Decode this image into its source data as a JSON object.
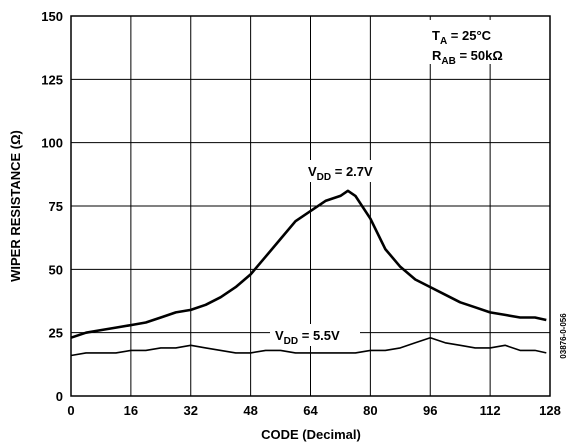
{
  "chart_data": {
    "type": "line",
    "xlabel": "CODE (Decimal)",
    "ylabel": "WIPER RESISTANCE (Ω)",
    "xlim": [
      0,
      128
    ],
    "ylim": [
      0,
      150
    ],
    "x_ticks": [
      "0",
      "16",
      "32",
      "48",
      "64",
      "80",
      "96",
      "112",
      "128"
    ],
    "y_ticks": [
      "0",
      "25",
      "50",
      "75",
      "100",
      "125",
      "150"
    ],
    "grid": true,
    "conditions": {
      "ta_main": "T",
      "ta_sub": "A",
      "ta_value": " = 25°C",
      "rab_main": "R",
      "rab_sub": "AB",
      "rab_value": " = 50kΩ"
    },
    "series": [
      {
        "label_main": "V",
        "label_sub": "DD",
        "label_value": " = 2.7V",
        "x": [
          0,
          4,
          8,
          12,
          16,
          20,
          24,
          28,
          32,
          36,
          40,
          44,
          48,
          52,
          56,
          60,
          64,
          68,
          72,
          74,
          76,
          80,
          84,
          88,
          92,
          96,
          100,
          104,
          108,
          112,
          116,
          120,
          124,
          127
        ],
        "values": [
          23,
          25,
          26,
          27,
          28,
          29,
          31,
          33,
          34,
          36,
          39,
          43,
          48,
          55,
          62,
          69,
          73,
          77,
          79,
          81,
          79,
          70,
          58,
          51,
          46,
          43,
          40,
          37,
          35,
          33,
          32,
          31,
          31,
          30
        ]
      },
      {
        "label_main": "V",
        "label_sub": "DD",
        "label_value": " = 5.5V",
        "x": [
          0,
          4,
          8,
          12,
          16,
          20,
          24,
          28,
          32,
          36,
          40,
          44,
          48,
          52,
          56,
          60,
          64,
          68,
          72,
          76,
          80,
          84,
          88,
          92,
          96,
          100,
          104,
          108,
          112,
          116,
          120,
          124,
          127
        ],
        "values": [
          16,
          17,
          17,
          17,
          18,
          18,
          19,
          19,
          20,
          19,
          18,
          17,
          17,
          18,
          18,
          17,
          17,
          17,
          17,
          17,
          18,
          18,
          19,
          21,
          23,
          21,
          20,
          19,
          19,
          20,
          18,
          18,
          17
        ]
      }
    ],
    "figure_code": "03876-0-056"
  }
}
